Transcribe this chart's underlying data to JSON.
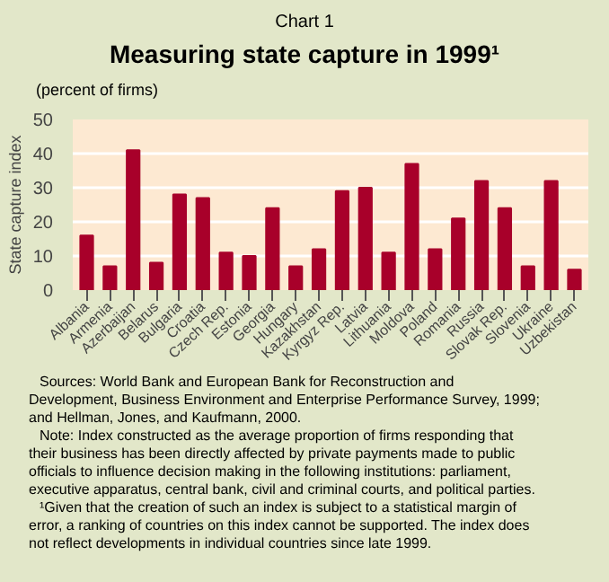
{
  "chart_data": {
    "type": "bar",
    "title": "Chart 1",
    "subtitle": "Measuring state capture in 1999¹",
    "ylabel": "State capture index",
    "categories": [
      "Albania",
      "Armenia",
      "Azerbaijan",
      "Belarus",
      "Bulgaria",
      "Croatia",
      "Czech Rep.",
      "Estonia",
      "Georgia",
      "Hungary",
      "Kazakhstan",
      "Kyrgyz Rep.",
      "Latvia",
      "Lithuania",
      "Moldova",
      "Poland",
      "Romania",
      "Russia",
      "Slovak Rep.",
      "Slovenia",
      "Ukraine",
      "Uzbekistan"
    ],
    "values": [
      16,
      7,
      41,
      8,
      28,
      27,
      11,
      10,
      24,
      7,
      12,
      29,
      30,
      11,
      37,
      12,
      21,
      32,
      24,
      7,
      32,
      6
    ],
    "color": "#a8002a",
    "ylim": [
      0,
      50
    ],
    "yticks": [
      0,
      10,
      20,
      30,
      40,
      50
    ],
    "grid": "y",
    "annotations": [
      "(percent of firms)",
      "Sources: World Bank and European Bank for Reconstruction and Development, Business Environment and Enterprise Performance Survey, 1999; and Hellman, Jones, and Kaufmann, 2000.",
      "Note: Index constructed as the average proportion of firms responding that their business has been directly affected by private payments made to public officials to influence decision making in the following institutions: parliament, executive apparatus, central bank, civil and criminal courts, and political parties.",
      "¹Given that the creation of such an index is subject to a statistical margin of error, a ranking of countries on this index cannot be supported. The index does not reflect developments in individual countries since late 1999."
    ]
  }
}
